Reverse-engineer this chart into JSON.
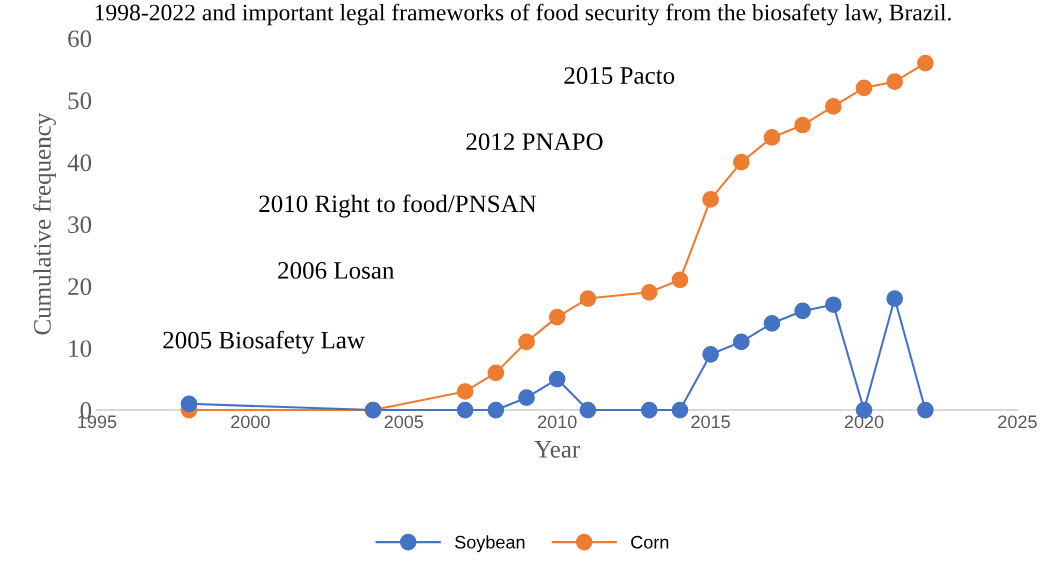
{
  "chart_data": {
    "type": "line",
    "title": "1998-2022 and important legal frameworks of food security from the biosafety law, Brazil.",
    "xlabel": "Year",
    "ylabel": "Cumulative frequency",
    "x": [
      1998,
      2004,
      2007,
      2008,
      2009,
      2010,
      2011,
      2013,
      2014,
      2015,
      2016,
      2017,
      2018,
      2019,
      2020,
      2021,
      2022
    ],
    "series": [
      {
        "name": "Soybean",
        "color": "#4472c4",
        "values": [
          1,
          0,
          0,
          0,
          2,
          5,
          0,
          0,
          0,
          9,
          11,
          14,
          16,
          17,
          0,
          18,
          0
        ]
      },
      {
        "name": "Corn",
        "color": "#ed7d31",
        "values": [
          0,
          0,
          3,
          6,
          11,
          15,
          18,
          19,
          21,
          34,
          40,
          44,
          46,
          49,
          52,
          53,
          56
        ]
      }
    ],
    "xlim": [
      1995,
      2025
    ],
    "xticks": [
      1995,
      2000,
      2005,
      2010,
      2015,
      2020,
      2025
    ],
    "ylim": [
      0,
      60
    ],
    "yticks": [
      0,
      10,
      20,
      30,
      40,
      50,
      60
    ],
    "annotations": [
      "2005 Biosafety Law",
      "2006 Losan",
      "2010 Right to food/PNSAN",
      "2012 PNAPO",
      "2015 Pacto"
    ],
    "grid": false,
    "legend": "bottom",
    "marker": "circle",
    "line_style": "solid"
  }
}
